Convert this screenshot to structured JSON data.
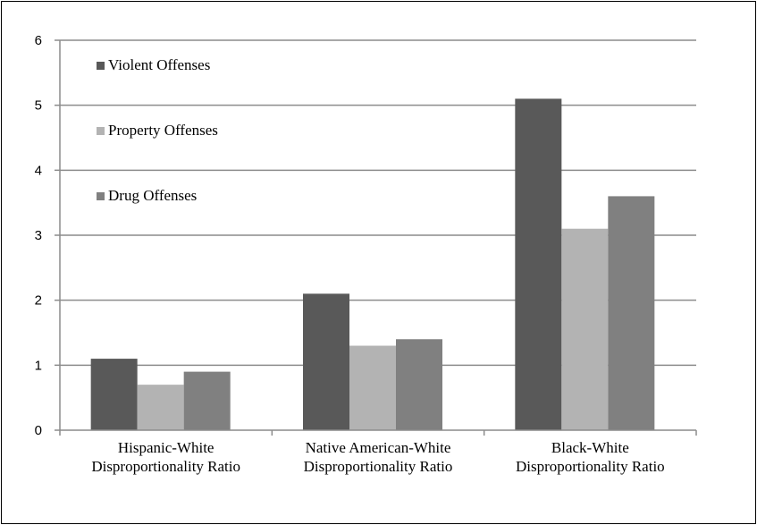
{
  "chart_data": {
    "type": "bar",
    "categories": [
      [
        "Hispanic-White",
        "Disproportionality Ratio"
      ],
      [
        "Native American-White",
        "Disproportionality Ratio"
      ],
      [
        "Black-White",
        "Disproportionality Ratio"
      ]
    ],
    "series": [
      {
        "name": "Violent Offenses",
        "color": "#595959",
        "values": [
          1.1,
          2.1,
          5.1
        ]
      },
      {
        "name": "Property Offenses",
        "color": "#b3b3b3",
        "values": [
          0.7,
          1.3,
          3.1
        ]
      },
      {
        "name": "Drug Offenses",
        "color": "#808080",
        "values": [
          0.9,
          1.4,
          3.6
        ]
      }
    ],
    "ylim": [
      0,
      6
    ],
    "yticks": [
      0,
      1,
      2,
      3,
      4,
      5,
      6
    ],
    "grid": true,
    "legend_position": "top-left, stacked vertically inside plot",
    "title": "",
    "xlabel": "",
    "ylabel": ""
  }
}
